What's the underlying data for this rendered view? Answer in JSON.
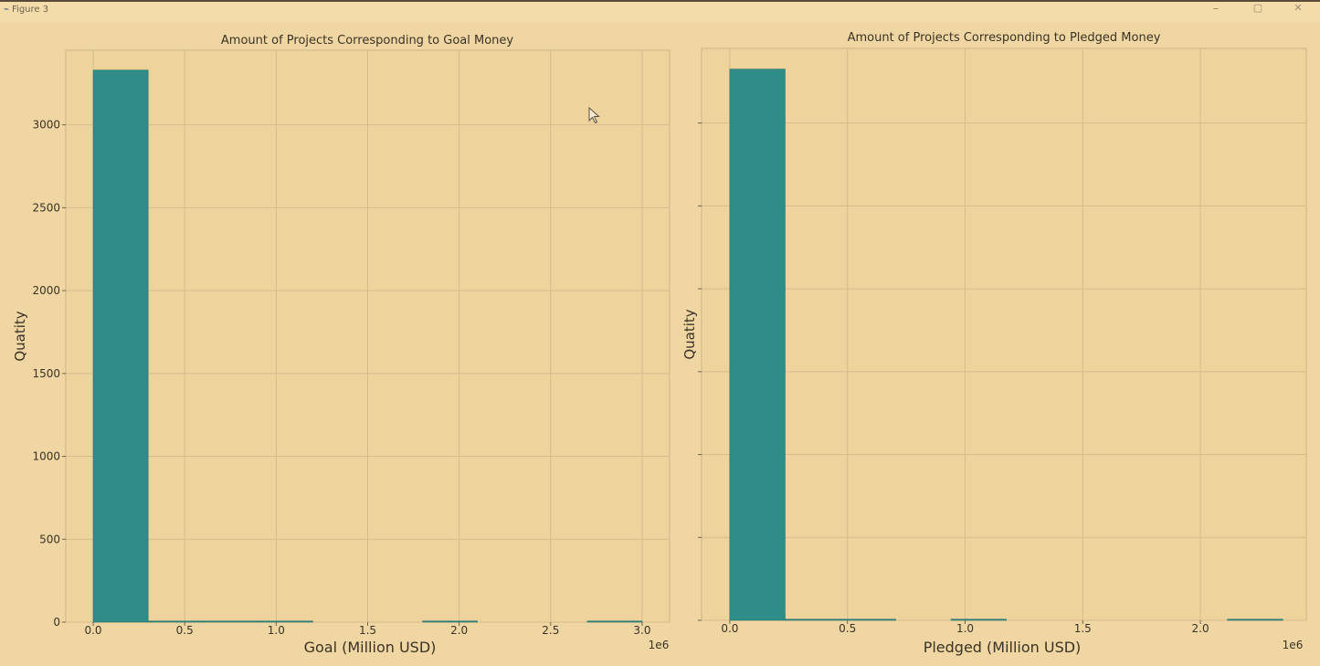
{
  "window": {
    "title": "Figure 3",
    "minimize_glyph": "–",
    "maximize_glyph": "▢",
    "close_glyph": "✕"
  },
  "colors": {
    "bar": "#2f8c88",
    "bar_edge": "#1f6f6b",
    "axes_bg": "#eed39c",
    "grid": "#d4bc8b",
    "spine": "#cdb687",
    "text": "#3b3327"
  },
  "chart_data": [
    {
      "type": "bar",
      "title": "Amount of Projects Corresponding to Goal Money",
      "xlabel": "Goal (Million USD)",
      "ylabel": "Quatity",
      "x_offset_label": "1e6",
      "xlim": [
        -0.15,
        3.15
      ],
      "ylim": [
        0,
        3450
      ],
      "xticks": [
        0.0,
        0.5,
        1.0,
        1.5,
        2.0,
        2.5,
        3.0
      ],
      "xtick_labels": [
        "0.0",
        "0.5",
        "1.0",
        "1.5",
        "2.0",
        "2.5",
        "3.0"
      ],
      "yticks": [
        0,
        500,
        1000,
        1500,
        2000,
        2500,
        3000
      ],
      "ytick_labels": [
        "0",
        "500",
        "1000",
        "1500",
        "2000",
        "2500",
        "3000"
      ],
      "bin_edges": [
        0.0,
        0.3,
        0.6,
        0.9,
        1.2,
        1.5,
        1.8,
        2.1,
        2.4,
        2.7,
        3.0
      ],
      "values": [
        3330,
        5,
        3,
        2,
        0,
        0,
        3,
        0,
        0,
        2
      ],
      "grid": true
    },
    {
      "type": "bar",
      "title": "Amount of Projects Corresponding to Pledged Money",
      "xlabel": "Pledged (Million USD)",
      "ylabel": "Quatity",
      "x_offset_label": "1e6",
      "xlim": [
        -0.12,
        2.45
      ],
      "ylim": [
        0,
        3450
      ],
      "xticks": [
        0.0,
        0.5,
        1.0,
        1.5,
        2.0
      ],
      "xtick_labels": [
        "0.0",
        "0.5",
        "1.0",
        "1.5",
        "2.0"
      ],
      "yticks": [
        0,
        500,
        1000,
        1500,
        2000,
        2500,
        3000
      ],
      "ytick_labels": [],
      "bin_edges": [
        0.0,
        0.235,
        0.47,
        0.705,
        0.94,
        1.175,
        1.41,
        1.645,
        1.88,
        2.115,
        2.35
      ],
      "values": [
        3325,
        6,
        3,
        0,
        2,
        0,
        0,
        0,
        0,
        2
      ],
      "grid": true
    }
  ]
}
